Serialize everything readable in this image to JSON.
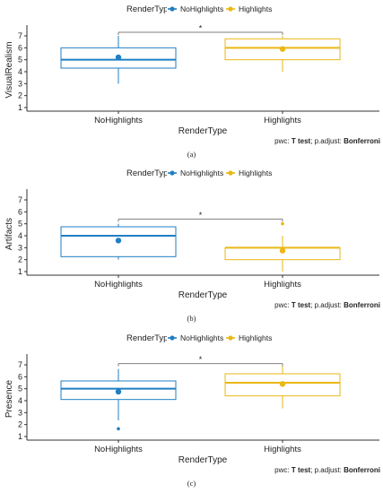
{
  "chart_data": [
    {
      "panel_caption": "(a)",
      "type": "box",
      "legend": {
        "title": "RenderType",
        "position": "top",
        "entries": [
          "NoHighlights",
          "Highlights"
        ]
      },
      "xlabel": "RenderType",
      "ylabel": "VisualRealism",
      "categories": [
        "NoHighlights",
        "Highlights"
      ],
      "yticks": [
        "1",
        "2",
        "3",
        "4",
        "5",
        "6",
        "7"
      ],
      "ylim": [
        0.7,
        7.6
      ],
      "boxes": [
        {
          "name": "NoHighlights",
          "q1": 4.3,
          "median": 5.0,
          "q3": 6.0,
          "whisker_low": 3.0,
          "whisker_high": 7.0,
          "mean": 5.2,
          "outliers": []
        },
        {
          "name": "Highlights",
          "q1": 5.0,
          "median": 6.0,
          "q3": 6.75,
          "whisker_low": 4.0,
          "whisker_high": 7.0,
          "mean": 5.9,
          "outliers": []
        }
      ],
      "significance": {
        "label": "*",
        "y": 7.3
      },
      "footnote_prefix": "pwc: ",
      "footnote_test": "T test",
      "footnote_mid": "; p.adjust: ",
      "footnote_adjust": "Bonferroni"
    },
    {
      "panel_caption": "(b)",
      "type": "box",
      "legend": {
        "title": "RenderType",
        "position": "top",
        "entries": [
          "NoHighlights",
          "Highlights"
        ]
      },
      "xlabel": "RenderType",
      "ylabel": "Artifacts",
      "categories": [
        "NoHighlights",
        "Highlights"
      ],
      "yticks": [
        "1",
        "2",
        "3",
        "4",
        "5",
        "6",
        "7"
      ],
      "ylim": [
        0.7,
        7.6
      ],
      "boxes": [
        {
          "name": "NoHighlights",
          "q1": 2.25,
          "median": 4.0,
          "q3": 4.75,
          "whisker_low": 2.0,
          "whisker_high": 5.0,
          "mean": 3.6,
          "outliers": []
        },
        {
          "name": "Highlights",
          "q1": 2.0,
          "median": 3.0,
          "q3": 3.0,
          "whisker_low": 1.0,
          "whisker_high": 4.0,
          "mean": 2.75,
          "outliers": [
            5.0
          ]
        }
      ],
      "significance": {
        "label": "*",
        "y": 5.4
      },
      "footnote_prefix": "pwc: ",
      "footnote_test": "T test",
      "footnote_mid": "; p.adjust: ",
      "footnote_adjust": "Bonferroni"
    },
    {
      "panel_caption": "(c)",
      "type": "box",
      "legend": {
        "title": "RenderType",
        "position": "top",
        "entries": [
          "NoHighlights",
          "Highlights"
        ]
      },
      "xlabel": "RenderType",
      "ylabel": "Presence",
      "categories": [
        "NoHighlights",
        "Highlights"
      ],
      "yticks": [
        "1",
        "2",
        "3",
        "4",
        "5",
        "6",
        "7"
      ],
      "ylim": [
        0.7,
        7.6
      ],
      "boxes": [
        {
          "name": "NoHighlights",
          "q1": 4.1,
          "median": 5.0,
          "q3": 5.65,
          "whisker_low": 2.35,
          "whisker_high": 6.65,
          "mean": 4.75,
          "outliers": [
            1.65
          ]
        },
        {
          "name": "Highlights",
          "q1": 4.4,
          "median": 5.5,
          "q3": 6.25,
          "whisker_low": 3.35,
          "whisker_high": 7.0,
          "mean": 5.4,
          "outliers": []
        }
      ],
      "significance": {
        "label": "*",
        "y": 7.1
      },
      "footnote_prefix": "pwc: ",
      "footnote_test": "T test",
      "footnote_mid": "; p.adjust: ",
      "footnote_adjust": "Bonferroni"
    }
  ],
  "colors": {
    "NoHighlights": "#1f7fc4",
    "Highlights": "#eab714",
    "bracket": "#7f7f7f",
    "axis": "#333333"
  }
}
